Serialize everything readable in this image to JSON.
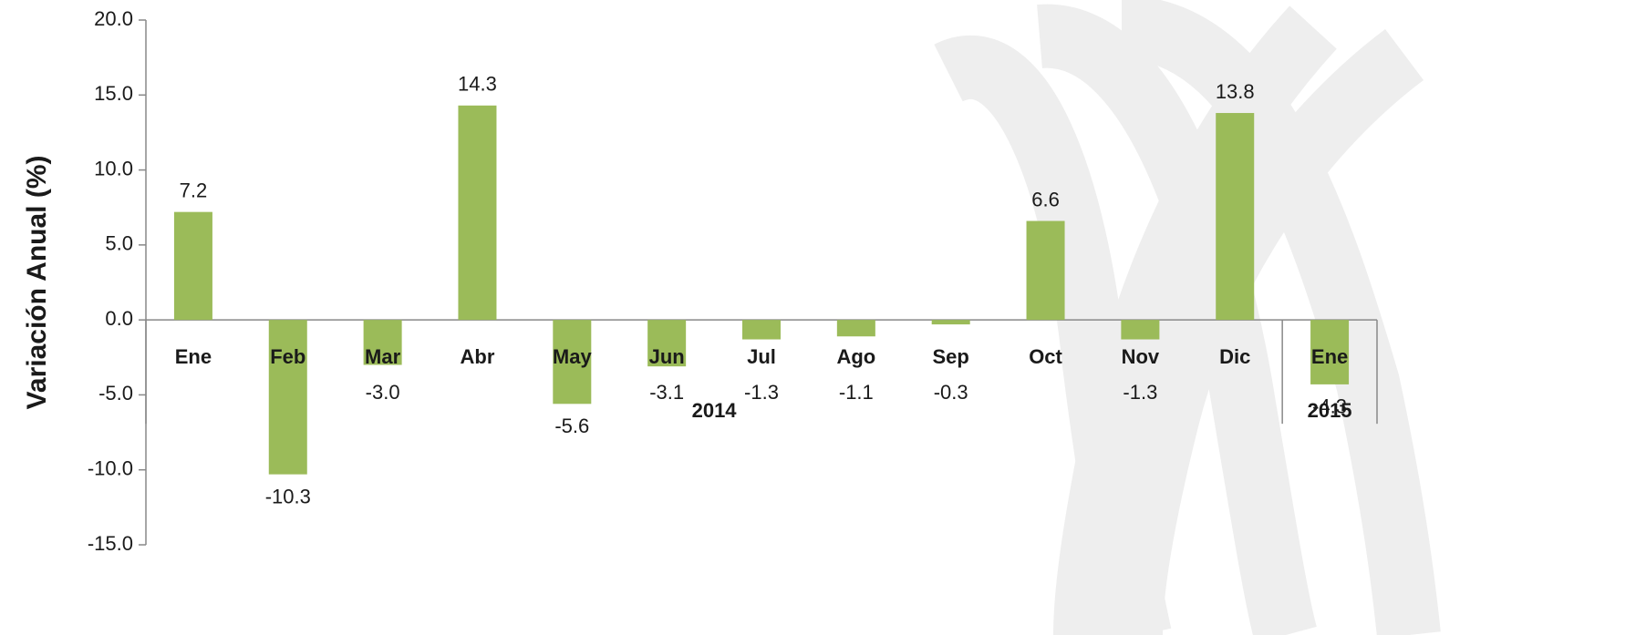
{
  "chart_data": {
    "type": "bar",
    "y_label": "Variación  Anual  (%)",
    "categories": [
      "Ene",
      "Feb",
      "Mar",
      "Abr",
      "May",
      "Jun",
      "Jul",
      "Ago",
      "Sep",
      "Oct",
      "Nov",
      "Dic",
      "Ene"
    ],
    "groups": [
      "2014",
      "2015"
    ],
    "values": [
      7.2,
      -10.3,
      -3.0,
      14.3,
      -5.6,
      -3.1,
      -1.3,
      -1.1,
      -0.3,
      6.6,
      -1.3,
      13.8,
      -4.3
    ],
    "value_labels": [
      "7.2",
      "-10.3",
      "-3.0",
      "14.3",
      "-5.6",
      "-3.1",
      "-1.3",
      "-1.1",
      "-0.3",
      "6.6",
      "-1.3",
      "13.8",
      "-4.3"
    ],
    "color": "#9bbb59",
    "ylim": [
      -15,
      20
    ],
    "yticks": [
      {
        "value": -15,
        "label": "-15.0"
      },
      {
        "value": -10,
        "label": "-10.0"
      },
      {
        "value": -5,
        "label": "-5.0"
      },
      {
        "value": 0,
        "label": "0.0"
      },
      {
        "value": 5,
        "label": "5.0"
      },
      {
        "value": 10,
        "label": "10.0"
      },
      {
        "value": 15,
        "label": "15.0"
      },
      {
        "value": 20,
        "label": "20.0"
      }
    ]
  }
}
